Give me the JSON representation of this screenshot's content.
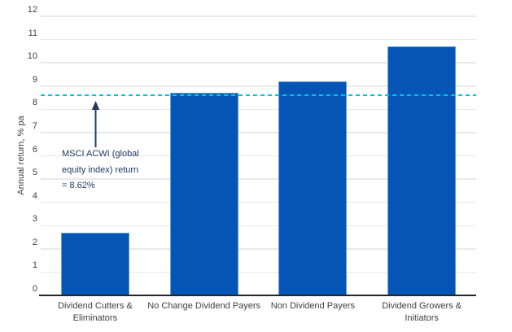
{
  "chart_data": {
    "type": "bar",
    "categories": [
      "Dividend Cutters & Eliminators",
      "No Change Dividend Payers",
      "Non Dividend Payers",
      "Dividend Growers & Initiators"
    ],
    "values": [
      2.7,
      8.7,
      9.2,
      10.7
    ],
    "ylabel": "Annual return, % pa",
    "ylim": [
      0,
      12
    ],
    "ytick_step": 1,
    "grid": true,
    "legend": "none",
    "bar_color": "#0455b5",
    "bar_edge_color": "#6d9ed9",
    "grid_color": "#e9e9e9",
    "axis_line_color": "#262626",
    "tick_label_color": "#404040",
    "reference_line": {
      "value": 8.62,
      "color": "#00c3ea",
      "style": "dashed"
    },
    "annotation": {
      "lines": [
        "MSCI ACWI (global",
        "equity index) return",
        "= 8.62%"
      ],
      "color": "#1f3864",
      "arrow_direction": "up"
    }
  }
}
